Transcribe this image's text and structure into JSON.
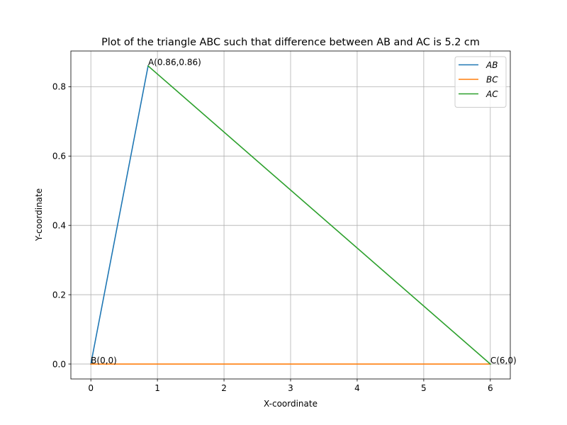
{
  "chart_data": {
    "type": "line",
    "title": "Plot of the triangle ABC such that difference between AB and AC is 5.2 cm",
    "xlabel": "X-coordinate",
    "ylabel": "Y-coordinate",
    "xlim": [
      -0.3,
      6.3
    ],
    "ylim": [
      -0.043,
      0.903
    ],
    "xticks": [
      0,
      1,
      2,
      3,
      4,
      5,
      6
    ],
    "xtick_labels": [
      "0",
      "1",
      "2",
      "3",
      "4",
      "5",
      "6"
    ],
    "yticks": [
      0.0,
      0.2,
      0.4,
      0.6,
      0.8
    ],
    "ytick_labels": [
      "0.0",
      "0.2",
      "0.4",
      "0.6",
      "0.8"
    ],
    "grid": true,
    "legend_position": "top-right",
    "series": [
      {
        "name": "AB",
        "color": "#1f77b4",
        "x": [
          0,
          0.86
        ],
        "y": [
          0,
          0.86
        ]
      },
      {
        "name": "BC",
        "color": "#ff7f0e",
        "x": [
          0,
          6
        ],
        "y": [
          0,
          0
        ]
      },
      {
        "name": "AC",
        "color": "#2ca02c",
        "x": [
          0.86,
          6
        ],
        "y": [
          0.86,
          0
        ]
      }
    ],
    "annotations": [
      {
        "text": "A(0.86,0.86)",
        "x": 0.86,
        "y": 0.86
      },
      {
        "text": "B(0,0)",
        "x": 0,
        "y": 0
      },
      {
        "text": "C(6,0)",
        "x": 6,
        "y": 0
      }
    ]
  }
}
